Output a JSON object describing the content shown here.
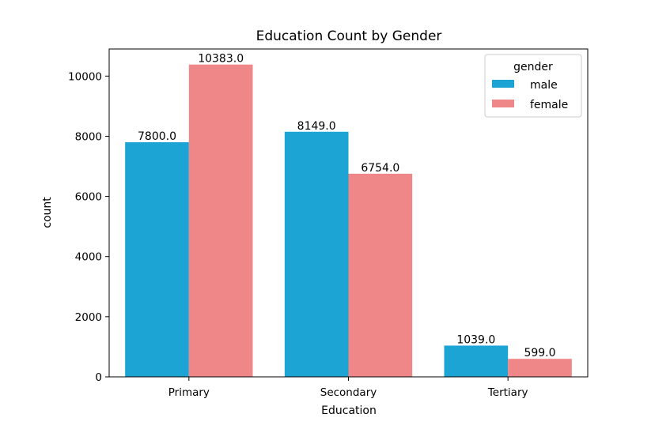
{
  "chart_data": {
    "type": "bar",
    "title": "Education Count by Gender",
    "xlabel": "Education",
    "ylabel": "count",
    "categories": [
      "Primary",
      "Secondary",
      "Tertiary"
    ],
    "series": [
      {
        "name": "male",
        "values": [
          7800,
          8149,
          1039
        ],
        "color": "#1ca4d4",
        "labels": [
          "7800.0",
          "8149.0",
          "1039.0"
        ]
      },
      {
        "name": "female",
        "values": [
          10383,
          6754,
          599
        ],
        "color": "#ef8688",
        "labels": [
          "10383.0",
          "6754.0",
          "599.0"
        ]
      }
    ],
    "ylim": [
      0,
      10901
    ],
    "yticks": [
      0,
      2000,
      4000,
      6000,
      8000,
      10000
    ],
    "ytick_labels": [
      "0",
      "2000",
      "4000",
      "6000",
      "8000",
      "10000"
    ],
    "legend": {
      "title": "gender",
      "placement": "top-right"
    },
    "grid": false
  }
}
